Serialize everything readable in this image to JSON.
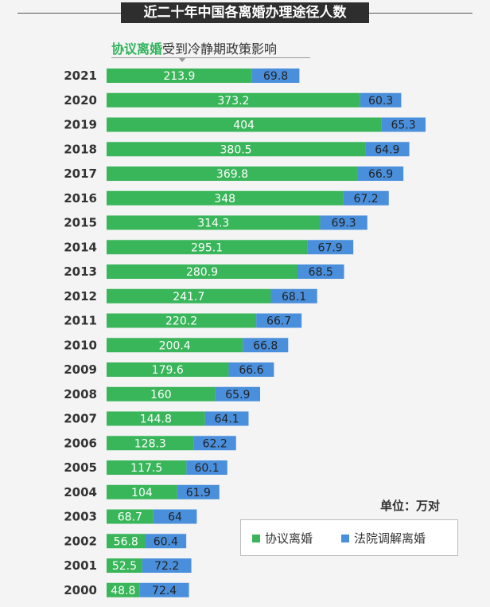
{
  "chart_data": {
    "type": "bar",
    "orientation": "horizontal",
    "stacked": true,
    "title": "近二十年中国各离婚办理途径人数",
    "subtitle_highlight": "协议离婚",
    "subtitle_rest": "受到冷静期政策影响",
    "unit": "单位：万对",
    "categories": [
      "2021",
      "2020",
      "2019",
      "2018",
      "2017",
      "2016",
      "2015",
      "2014",
      "2013",
      "2012",
      "2011",
      "2010",
      "2009",
      "2008",
      "2007",
      "2006",
      "2005",
      "2004",
      "2003",
      "2002",
      "2001",
      "2000"
    ],
    "series": [
      {
        "name": "协议离婚",
        "color": "#39b55a",
        "values": [
          213.9,
          373.2,
          404,
          380.5,
          369.8,
          348,
          314.3,
          295.1,
          280.9,
          241.7,
          220.2,
          200.4,
          179.6,
          160,
          144.8,
          128.3,
          117.5,
          104,
          68.7,
          56.8,
          52.5,
          48.8
        ]
      },
      {
        "name": "法院调解离婚",
        "color": "#4a8fdc",
        "values": [
          69.8,
          60.3,
          65.3,
          64.9,
          66.9,
          67.2,
          69.3,
          67.9,
          68.5,
          68.1,
          66.7,
          66.8,
          66.6,
          65.9,
          64.1,
          62.2,
          60.1,
          61.9,
          64,
          60.4,
          72.2,
          72.4
        ]
      }
    ],
    "legend_position": "bottom-right"
  }
}
